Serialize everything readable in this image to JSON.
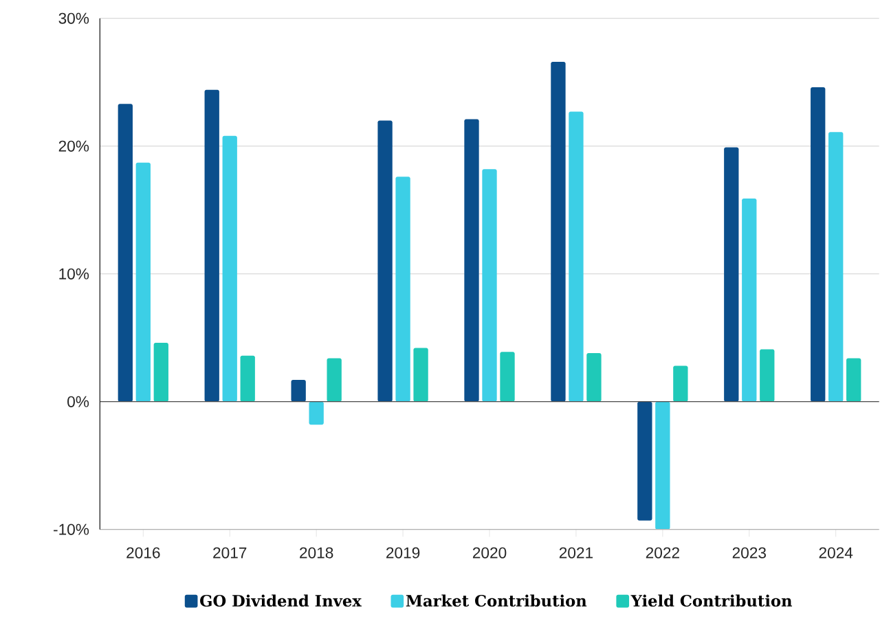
{
  "chart_data": {
    "type": "bar",
    "categories": [
      "2016",
      "2017",
      "2018",
      "2019",
      "2020",
      "2021",
      "2022",
      "2023",
      "2024"
    ],
    "series": [
      {
        "name": "GO Dividend Invex",
        "color": "#0b4f8c",
        "values": [
          23.3,
          24.4,
          1.7,
          22.0,
          22.1,
          26.6,
          -9.3,
          19.9,
          24.6
        ]
      },
      {
        "name": "Market Contribution",
        "color": "#3ccfe6",
        "values": [
          18.7,
          20.8,
          -1.8,
          17.6,
          18.2,
          22.7,
          -10.0,
          15.9,
          21.1
        ]
      },
      {
        "name": "Yield Contribution",
        "color": "#1fc9b8",
        "values": [
          4.6,
          3.6,
          3.4,
          4.2,
          3.9,
          3.8,
          2.8,
          4.1,
          3.4
        ]
      }
    ],
    "ylim": [
      -10,
      30
    ],
    "yticks": [
      {
        "value": -10,
        "label": "-10%"
      },
      {
        "value": 0,
        "label": "0%"
      },
      {
        "value": 10,
        "label": "10%"
      },
      {
        "value": 20,
        "label": "20%"
      },
      {
        "value": 30,
        "label": "30%"
      }
    ],
    "grid": "y",
    "legend": "bottom"
  }
}
